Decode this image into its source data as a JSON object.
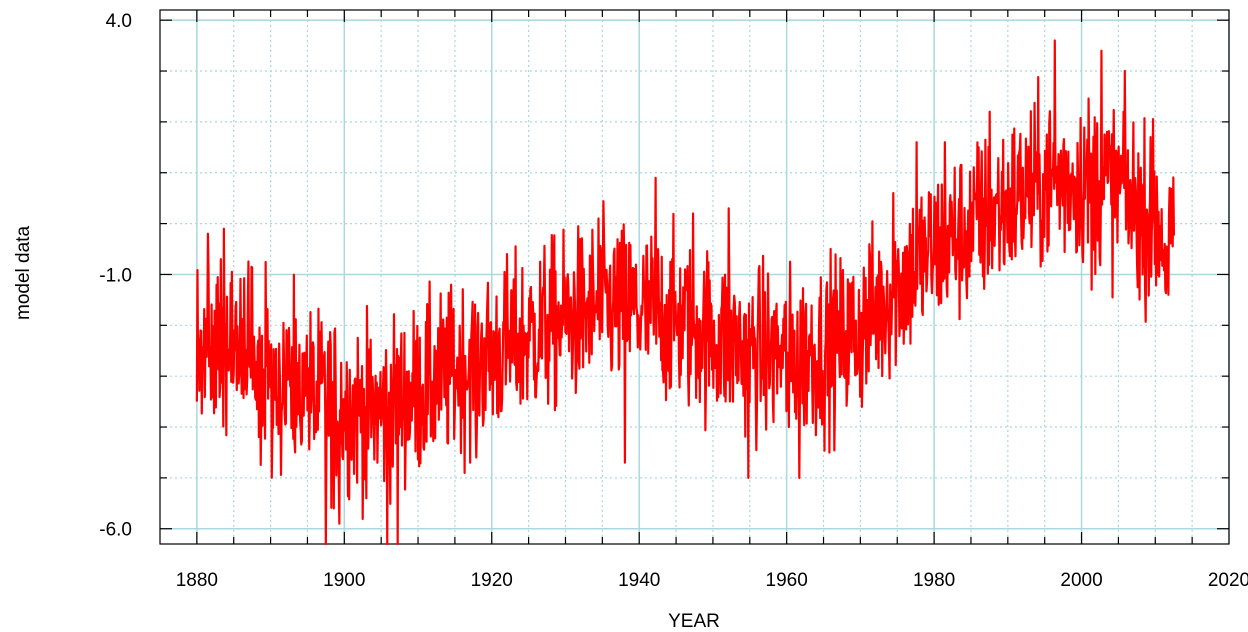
{
  "chart_data": {
    "type": "line",
    "title": "",
    "xlabel": "YEAR",
    "ylabel": "model data",
    "xlim": [
      1875,
      2020
    ],
    "ylim": [
      -6.3,
      4.2
    ],
    "x_ticks": [
      1880,
      1900,
      1920,
      1940,
      1960,
      1980,
      2000,
      2020
    ],
    "x_tick_labels": [
      "1880",
      "1900",
      "1920",
      "1940",
      "1960",
      "1980",
      "2000",
      "2020"
    ],
    "y_ticks": [
      4.0,
      -1.0,
      -6.0
    ],
    "y_tick_labels": [
      "4.0",
      "-1.0",
      "-6.0"
    ],
    "grid": true,
    "legend": "none",
    "colors": {
      "series": "#ff0000",
      "grid": "#a9d8df",
      "axes": "#000000"
    },
    "series": [
      {
        "x_start": 1880,
        "x_end": 2012.5,
        "step": 0.0833,
        "anchors": [
          [
            1880,
            -2.3
          ],
          [
            1885,
            -2.5
          ],
          [
            1890,
            -3.0
          ],
          [
            1895,
            -3.3
          ],
          [
            1900,
            -3.6
          ],
          [
            1905,
            -3.7
          ],
          [
            1910,
            -3.3
          ],
          [
            1915,
            -2.9
          ],
          [
            1920,
            -2.6
          ],
          [
            1925,
            -2.2
          ],
          [
            1930,
            -1.9
          ],
          [
            1935,
            -1.6
          ],
          [
            1940,
            -1.7
          ],
          [
            1945,
            -1.9
          ],
          [
            1950,
            -2.2
          ],
          [
            1955,
            -2.5
          ],
          [
            1960,
            -2.6
          ],
          [
            1965,
            -2.5
          ],
          [
            1970,
            -2.1
          ],
          [
            1975,
            -1.2
          ],
          [
            1980,
            -0.5
          ],
          [
            1985,
            -0.1
          ],
          [
            1990,
            0.4
          ],
          [
            1995,
            0.8
          ],
          [
            2000,
            0.9
          ],
          [
            2005,
            0.7
          ],
          [
            2010,
            0.0
          ],
          [
            2012.5,
            -0.5
          ]
        ],
        "noise_amplitude": 1.1,
        "extremes": [
          [
            1879.9,
            -0.9
          ],
          [
            1879.95,
            -3.5
          ],
          [
            1881.5,
            -0.2
          ],
          [
            1883.7,
            -0.1
          ],
          [
            1893.3,
            -4.5
          ],
          [
            1896.2,
            -4.1
          ],
          [
            1897.5,
            -6.3
          ],
          [
            1898.6,
            -5.6
          ],
          [
            1899.3,
            -5.9
          ],
          [
            1903.0,
            -5.4
          ],
          [
            1905.8,
            -6.3
          ],
          [
            1907.2,
            -6.3
          ],
          [
            1917.1,
            -4.7
          ],
          [
            1917.9,
            -4.6
          ],
          [
            1922.1,
            -0.6
          ],
          [
            1934.5,
            0.1
          ],
          [
            1938.1,
            -4.7
          ],
          [
            1942.2,
            0.9
          ],
          [
            1947.3,
            0.2
          ],
          [
            1952.1,
            0.3
          ],
          [
            1954.8,
            -5.0
          ],
          [
            1960.3,
            -4.0
          ],
          [
            1961.7,
            -5.0
          ],
          [
            1966.0,
            -0.5
          ],
          [
            1974.5,
            0.6
          ],
          [
            1977.6,
            1.6
          ],
          [
            1981.5,
            1.6
          ],
          [
            1986.0,
            1.5
          ],
          [
            1987.5,
            2.2
          ],
          [
            1991.5,
            1.4
          ],
          [
            1996.4,
            3.6
          ],
          [
            2001.4,
            -1.3
          ],
          [
            2002.7,
            3.4
          ],
          [
            2005.7,
            2.2
          ],
          [
            2008.3,
            -1.0
          ],
          [
            2009.4,
            1.7
          ],
          [
            2011.4,
            -1.3
          ],
          [
            2011.8,
            -1.4
          ]
        ]
      }
    ]
  }
}
